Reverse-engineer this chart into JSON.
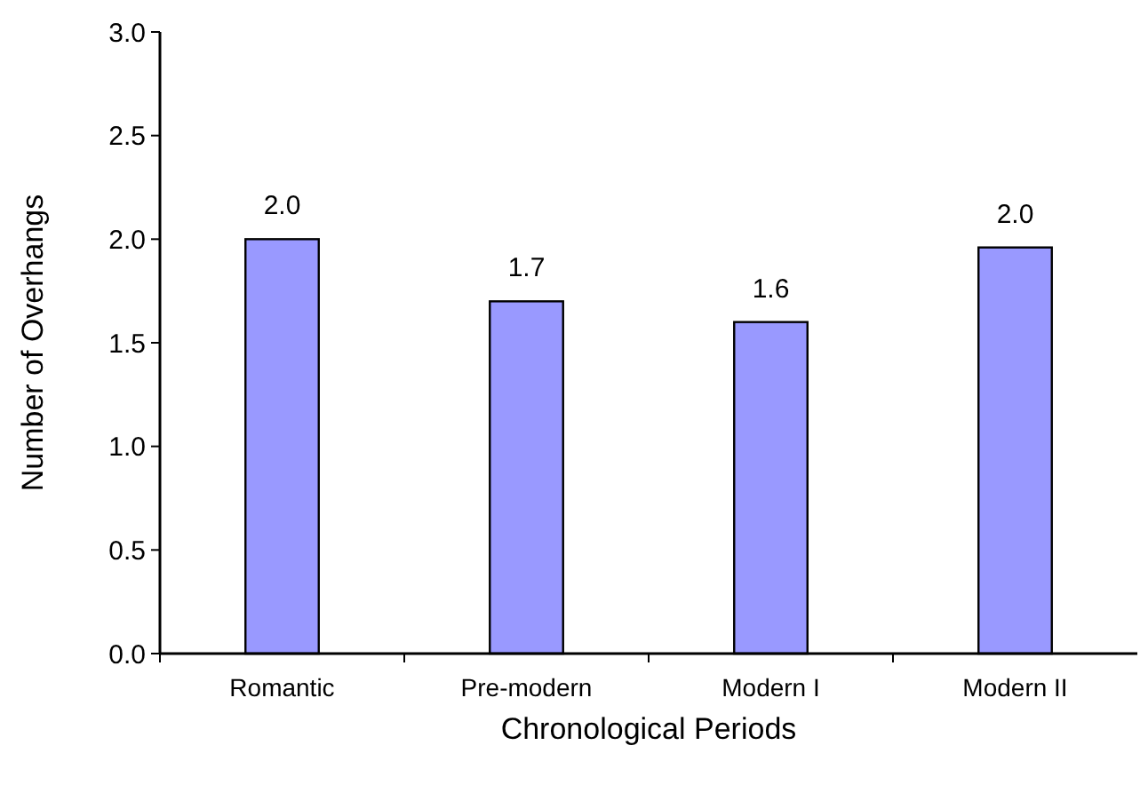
{
  "chart_data": {
    "type": "bar",
    "xlabel": "Chronological Periods",
    "ylabel": "Number of Overhangs",
    "categories": [
      "Romantic",
      "Pre-modern",
      "Modern I",
      "Modern II"
    ],
    "values": [
      2.0,
      1.7,
      1.6,
      1.96
    ],
    "value_labels": [
      "2.0",
      "1.7",
      "1.6",
      "2.0"
    ],
    "color": "#9999ff",
    "ylim": [
      0,
      3
    ],
    "yticks": [
      {
        "value": 0,
        "label": "0.0"
      },
      {
        "value": 0.5,
        "label": "0.5"
      },
      {
        "value": 1,
        "label": "1.0"
      },
      {
        "value": 1.5,
        "label": "1.5"
      },
      {
        "value": 2,
        "label": "2.0"
      },
      {
        "value": 2.5,
        "label": "2.5"
      },
      {
        "value": 3,
        "label": "3.0"
      }
    ],
    "grid": false
  }
}
